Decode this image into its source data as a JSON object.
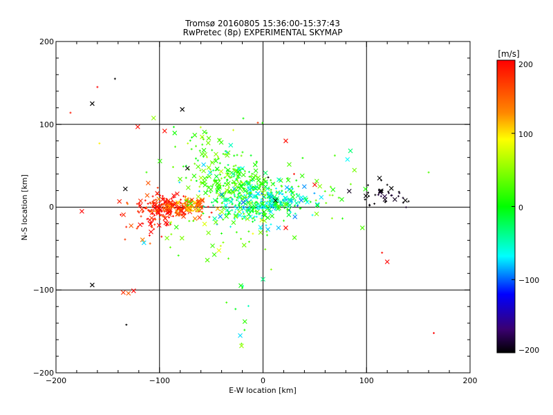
{
  "chart_data": [
    {
      "type": "scatter",
      "title": "Tromsø 20160805 15:36:00-15:37:43",
      "subtitle": "RwPretec (8p) EXPERIMENTAL SKYMAP",
      "xlabel": "E-W location [km]",
      "ylabel": "N-S location [km]",
      "xlim": [
        -200,
        200
      ],
      "ylim": [
        -200,
        200
      ],
      "xticks": [
        "−200",
        "−100",
        "0",
        "100",
        "200"
      ],
      "yticks": [
        "−200",
        "−100",
        "0",
        "100",
        "200"
      ],
      "grid": true,
      "gridlines": {
        "x": [
          -100,
          0,
          100
        ],
        "y": [
          -100,
          0,
          100
        ]
      },
      "marker_types": [
        "x (large)",
        "+ (small)"
      ],
      "color_by": "velocity [m/s]",
      "clusters": [
        {
          "center": [
            -90,
            0
          ],
          "spread": [
            14,
            6
          ],
          "count": 200,
          "velocity": 185
        },
        {
          "center": [
            -70,
            0
          ],
          "spread": [
            8,
            5
          ],
          "count": 60,
          "velocity": 140
        },
        {
          "center": [
            -110,
            -10
          ],
          "spread": [
            14,
            14
          ],
          "count": 60,
          "velocity": 190
        },
        {
          "center": [
            -28,
            28
          ],
          "spread": [
            22,
            16
          ],
          "count": 230,
          "velocity": 20
        },
        {
          "center": [
            -55,
            60
          ],
          "spread": [
            22,
            22
          ],
          "count": 60,
          "velocity": 30
        },
        {
          "center": [
            -5,
            5
          ],
          "spread": [
            18,
            12
          ],
          "count": 220,
          "velocity": -15
        },
        {
          "center": [
            20,
            8
          ],
          "spread": [
            15,
            8
          ],
          "count": 60,
          "velocity": -30
        },
        {
          "center": [
            -40,
            -30
          ],
          "spread": [
            35,
            25
          ],
          "count": 45,
          "velocity": 40
        },
        {
          "center": [
            60,
            20
          ],
          "spread": [
            22,
            20
          ],
          "count": 30,
          "velocity": 20
        },
        {
          "center": [
            120,
            15
          ],
          "spread": [
            16,
            8
          ],
          "count": 35,
          "velocity": -200
        },
        {
          "center": [
            -20,
            -120
          ],
          "spread": [
            6,
            25
          ],
          "count": 10,
          "velocity": 10
        }
      ],
      "outliers": [
        {
          "x": -143,
          "y": 155,
          "v": -200
        },
        {
          "x": -165,
          "y": -94,
          "v": -200
        },
        {
          "x": -132,
          "y": -142,
          "v": -200
        },
        {
          "x": -133,
          "y": 22,
          "v": -200
        },
        {
          "x": -78,
          "y": 118,
          "v": -200
        },
        {
          "x": -73,
          "y": 47,
          "v": -200
        },
        {
          "x": 5,
          "y": 36,
          "v": -200
        },
        {
          "x": 12,
          "y": 8,
          "v": -200
        },
        {
          "x": 103,
          "y": 2,
          "v": -200
        },
        {
          "x": 120,
          "y": 27,
          "v": -200
        },
        {
          "x": -186,
          "y": 114,
          "v": 190
        },
        {
          "x": -158,
          "y": 77,
          "v": 105
        },
        {
          "x": -121,
          "y": 97,
          "v": 195
        },
        {
          "x": -95,
          "y": 92,
          "v": 195
        },
        {
          "x": -5,
          "y": 102,
          "v": 175
        },
        {
          "x": 22,
          "y": 80,
          "v": 195
        },
        {
          "x": 30,
          "y": 40,
          "v": 195
        },
        {
          "x": 50,
          "y": 27,
          "v": 195
        },
        {
          "x": 115,
          "y": -55,
          "v": 195
        },
        {
          "x": 120,
          "y": -66,
          "v": 200
        },
        {
          "x": 165,
          "y": -152,
          "v": 200
        },
        {
          "x": -135,
          "y": -103,
          "v": 180
        },
        {
          "x": -130,
          "y": -104,
          "v": 160
        },
        {
          "x": -125,
          "y": -101,
          "v": 200
        },
        {
          "x": -115,
          "y": -43,
          "v": -40
        },
        {
          "x": 0,
          "y": -87,
          "v": -15
        },
        {
          "x": -22,
          "y": -155,
          "v": -40
        },
        {
          "x": 3,
          "y": -22,
          "v": -35
        },
        {
          "x": 22,
          "y": -25,
          "v": 195
        },
        {
          "x": -160,
          "y": 145,
          "v": 200
        },
        {
          "x": -165,
          "y": 125,
          "v": -200
        },
        {
          "x": -175,
          "y": -5,
          "v": 200
        },
        {
          "x": 160,
          "y": 42,
          "v": 30
        },
        {
          "x": 96,
          "y": -25,
          "v": 30
        }
      ],
      "colorbar": {
        "label": "[m/s]",
        "ticks": [
          "200",
          "100",
          "0",
          "−100",
          "−200"
        ],
        "range": [
          -200,
          200
        ],
        "colors": [
          "#ff0000",
          "#ff8800",
          "#ffff00",
          "#00ff00",
          "#00ffff",
          "#0000ff",
          "#000000"
        ]
      }
    }
  ]
}
